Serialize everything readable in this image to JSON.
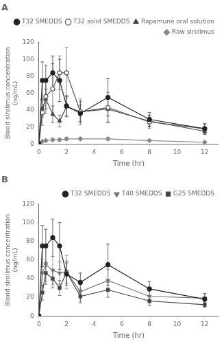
{
  "chart_data": [
    {
      "type": "line",
      "title": "A",
      "x": [
        0,
        0.25,
        0.5,
        1,
        1.5,
        2,
        3,
        5,
        8,
        12
      ],
      "series": [
        {
          "name": "T32 SMEDDS",
          "color": "#222222",
          "marker": "circle",
          "line_style": "solid",
          "values": [
            0,
            75,
            75,
            84,
            75,
            45,
            36,
            55,
            29,
            18
          ],
          "sd": [
            0,
            22,
            18,
            20,
            25,
            12,
            10,
            22,
            8,
            6
          ]
        },
        {
          "name": "T32 solid SMEDDS",
          "color": "#555555",
          "marker": "open_circle",
          "line_style": "solid",
          "values": [
            0,
            37,
            56,
            65,
            84,
            84,
            38,
            43,
            26,
            18
          ],
          "sd": [
            0,
            15,
            20,
            30,
            20,
            30,
            15,
            18,
            8,
            5
          ]
        },
        {
          "name": "Rapamune oral solution",
          "color": "#444444",
          "marker": "triangle",
          "line_style": "solid",
          "values": [
            0,
            42,
            53,
            35,
            27,
            44,
            38,
            41,
            27,
            15
          ],
          "sd": [
            0,
            10,
            12,
            10,
            7,
            12,
            12,
            15,
            7,
            4
          ]
        },
        {
          "name": "Raw sirolimus",
          "color": "#888888",
          "marker": "diamond",
          "line_style": "solid",
          "values": [
            0,
            3,
            4,
            5,
            5,
            6,
            6,
            6,
            4,
            2
          ],
          "sd": [
            0,
            1,
            1,
            2,
            2,
            2,
            2,
            2,
            1,
            1
          ]
        }
      ],
      "xlabel": "Time (hr)",
      "ylabel": "Blood sirolimus concentration\n(ng/mL)",
      "xlim": [
        0,
        13
      ],
      "xticks": [
        0,
        2,
        4,
        6,
        8,
        10,
        12
      ],
      "ylim": [
        0,
        120
      ],
      "yticks": [
        0,
        20,
        40,
        60,
        80,
        100,
        120
      ],
      "grid": false,
      "legend": "upper right"
    },
    {
      "type": "line",
      "title": "B",
      "x": [
        0,
        0.25,
        0.5,
        1,
        1.5,
        2,
        3,
        5,
        8,
        12
      ],
      "series": [
        {
          "name": "T32 SMEDDS",
          "color": "#222222",
          "marker": "circle",
          "line_style": "solid",
          "values": [
            0,
            75,
            75,
            84,
            75,
            45,
            36,
            55,
            29,
            18
          ],
          "sd": [
            0,
            22,
            18,
            20,
            25,
            12,
            10,
            22,
            8,
            6
          ]
        },
        {
          "name": "T40 SMEDDS",
          "color": "#777777",
          "marker": "triangle_down",
          "line_style": "solid",
          "values": [
            0,
            46,
            55,
            49,
            46,
            47,
            26,
            38,
            21,
            19
          ],
          "sd": [
            0,
            15,
            18,
            15,
            12,
            18,
            10,
            12,
            7,
            5
          ]
        },
        {
          "name": "G25 SMEDDS",
          "color": "#444444",
          "marker": "square",
          "line_style": "solid",
          "values": [
            0,
            25,
            46,
            40,
            30,
            47,
            21,
            28,
            16,
            12
          ],
          "sd": [
            0,
            8,
            12,
            10,
            8,
            12,
            7,
            8,
            5,
            3
          ]
        }
      ],
      "xlabel": "Time (hr)",
      "ylabel": "Blood sirolimus concentration\n(ng/mL)",
      "xlim": [
        0,
        13
      ],
      "xticks": [
        0,
        2,
        4,
        6,
        8,
        10,
        12
      ],
      "ylim": [
        0,
        120
      ],
      "yticks": [
        0,
        20,
        40,
        60,
        80,
        100,
        120
      ],
      "grid": false,
      "legend": "upper right"
    }
  ]
}
